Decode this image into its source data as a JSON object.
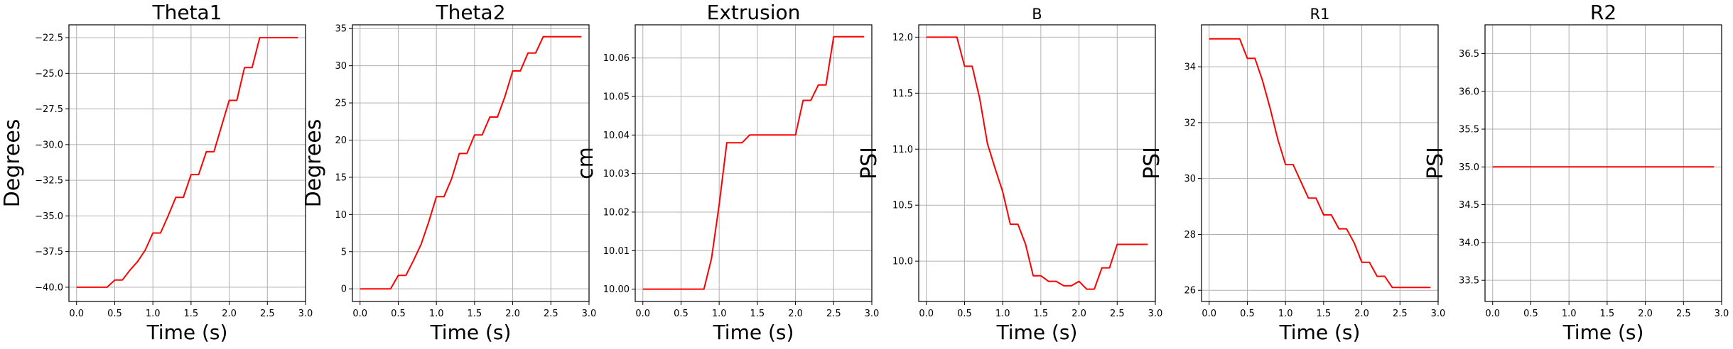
{
  "chart_data": [
    {
      "type": "line",
      "title": "Theta1",
      "xlabel": "Time (s)",
      "ylabel": "Degrees",
      "xlim": [
        -0.1,
        3.0
      ],
      "ylim": [
        -41.0,
        -21.6
      ],
      "xticks": [
        0.0,
        0.5,
        1.0,
        1.5,
        2.0,
        2.5,
        3.0
      ],
      "xtick_labels": [
        "0.0",
        "0.5",
        "1.0",
        "1.5",
        "2.0",
        "2.5",
        "3.0"
      ],
      "yticks": [
        -40.0,
        -37.5,
        -35.0,
        -32.5,
        -30.0,
        -27.5,
        -25.0,
        -22.5
      ],
      "ytick_labels": [
        "−40.0",
        "−37.5",
        "−35.0",
        "−32.5",
        "−30.0",
        "−27.5",
        "−25.0",
        "−22.5"
      ],
      "grid": true,
      "color": "#ff0000",
      "x": [
        0.0,
        0.1,
        0.2,
        0.3,
        0.4,
        0.5,
        0.6,
        0.7,
        0.8,
        0.9,
        1.0,
        1.1,
        1.2,
        1.3,
        1.4,
        1.5,
        1.6,
        1.7,
        1.8,
        1.9,
        2.0,
        2.1,
        2.2,
        2.3,
        2.4,
        2.5,
        2.6,
        2.7,
        2.8,
        2.9
      ],
      "y": [
        -40.0,
        -40.0,
        -40.0,
        -40.0,
        -40.0,
        -39.5,
        -39.5,
        -38.8,
        -38.2,
        -37.4,
        -36.2,
        -36.2,
        -35.0,
        -33.7,
        -33.7,
        -32.1,
        -32.1,
        -30.5,
        -30.5,
        -28.7,
        -26.9,
        -26.9,
        -24.6,
        -24.6,
        -22.5,
        -22.5,
        -22.5,
        -22.5,
        -22.5,
        -22.5
      ]
    },
    {
      "type": "line",
      "title": "Theta2",
      "xlabel": "Time (s)",
      "ylabel": "Degrees",
      "xlim": [
        -0.1,
        3.0
      ],
      "ylim": [
        -1.7,
        35.5
      ],
      "xticks": [
        0.0,
        0.5,
        1.0,
        1.5,
        2.0,
        2.5,
        3.0
      ],
      "xtick_labels": [
        "0.0",
        "0.5",
        "1.0",
        "1.5",
        "2.0",
        "2.5",
        "3.0"
      ],
      "yticks": [
        0,
        5,
        10,
        15,
        20,
        25,
        30,
        35
      ],
      "ytick_labels": [
        "0",
        "5",
        "10",
        "15",
        "20",
        "25",
        "30",
        "35"
      ],
      "grid": true,
      "color": "#ff0000",
      "x": [
        0.0,
        0.1,
        0.2,
        0.3,
        0.4,
        0.5,
        0.6,
        0.7,
        0.8,
        0.9,
        1.0,
        1.1,
        1.2,
        1.3,
        1.4,
        1.5,
        1.6,
        1.7,
        1.8,
        1.9,
        2.0,
        2.1,
        2.2,
        2.3,
        2.4,
        2.5,
        2.6,
        2.7,
        2.8,
        2.9
      ],
      "y": [
        0.0,
        0.0,
        0.0,
        0.0,
        0.0,
        1.8,
        1.8,
        3.8,
        6.0,
        9.0,
        12.4,
        12.4,
        14.8,
        18.2,
        18.2,
        20.7,
        20.7,
        23.1,
        23.1,
        25.9,
        29.3,
        29.3,
        31.7,
        31.7,
        33.9,
        33.9,
        33.9,
        33.9,
        33.9,
        33.9
      ]
    },
    {
      "type": "line",
      "title": "Extrusion",
      "xlabel": "Time (s)",
      "ylabel": "cm",
      "xlim": [
        -0.1,
        3.0
      ],
      "ylim": [
        9.9968,
        10.0686
      ],
      "xticks": [
        0.0,
        0.5,
        1.0,
        1.5,
        2.0,
        2.5,
        3.0
      ],
      "xtick_labels": [
        "0.0",
        "0.5",
        "1.0",
        "1.5",
        "2.0",
        "2.5",
        "3.0"
      ],
      "yticks": [
        10.0,
        10.01,
        10.02,
        10.03,
        10.04,
        10.05,
        10.06
      ],
      "ytick_labels": [
        "10.00",
        "10.01",
        "10.02",
        "10.03",
        "10.04",
        "10.05",
        "10.06"
      ],
      "grid": true,
      "color": "#ff0000",
      "x": [
        0.0,
        0.1,
        0.2,
        0.3,
        0.4,
        0.5,
        0.6,
        0.7,
        0.8,
        0.9,
        1.0,
        1.1,
        1.2,
        1.3,
        1.4,
        1.5,
        1.6,
        1.7,
        1.8,
        1.9,
        2.0,
        2.1,
        2.2,
        2.3,
        2.4,
        2.5,
        2.6,
        2.7,
        2.8,
        2.9
      ],
      "y": [
        10.0,
        10.0,
        10.0,
        10.0,
        10.0,
        10.0,
        10.0,
        10.0,
        10.0,
        10.008,
        10.022,
        10.038,
        10.038,
        10.038,
        10.04,
        10.04,
        10.04,
        10.04,
        10.04,
        10.04,
        10.04,
        10.049,
        10.049,
        10.053,
        10.053,
        10.0655,
        10.0655,
        10.0655,
        10.0655,
        10.0655
      ]
    },
    {
      "type": "line",
      "title": "B",
      "xlabel": "Time (s)",
      "ylabel": "PSI",
      "xlim": [
        -0.1,
        3.0
      ],
      "ylim": [
        9.64,
        12.11
      ],
      "xticks": [
        0.0,
        0.5,
        1.0,
        1.5,
        2.0,
        2.5,
        3.0
      ],
      "xtick_labels": [
        "0.0",
        "0.5",
        "1.0",
        "1.5",
        "2.0",
        "2.5",
        "3.0"
      ],
      "yticks": [
        10.0,
        10.5,
        11.0,
        11.5,
        12.0
      ],
      "ytick_labels": [
        "10.0",
        "10.5",
        "11.0",
        "11.5",
        "12.0"
      ],
      "grid": true,
      "color": "#ff0000",
      "x": [
        0.0,
        0.1,
        0.2,
        0.3,
        0.4,
        0.5,
        0.6,
        0.7,
        0.8,
        0.9,
        1.0,
        1.1,
        1.2,
        1.3,
        1.4,
        1.5,
        1.6,
        1.7,
        1.8,
        1.9,
        2.0,
        2.1,
        2.2,
        2.3,
        2.4,
        2.5,
        2.6,
        2.7,
        2.8,
        2.9
      ],
      "y": [
        12.0,
        12.0,
        12.0,
        12.0,
        12.0,
        11.74,
        11.74,
        11.45,
        11.05,
        10.83,
        10.62,
        10.33,
        10.33,
        10.15,
        9.87,
        9.87,
        9.82,
        9.82,
        9.78,
        9.78,
        9.82,
        9.75,
        9.75,
        9.94,
        9.94,
        10.15,
        10.15,
        10.15,
        10.15,
        10.15
      ]
    },
    {
      "type": "line",
      "title": "R1",
      "xlabel": "Time (s)",
      "ylabel": "PSI",
      "xlim": [
        -0.1,
        3.0
      ],
      "ylim": [
        25.6,
        35.5
      ],
      "xticks": [
        0.0,
        0.5,
        1.0,
        1.5,
        2.0,
        2.5,
        3.0
      ],
      "xtick_labels": [
        "0.0",
        "0.5",
        "1.0",
        "1.5",
        "2.0",
        "2.5",
        "3.0"
      ],
      "yticks": [
        26,
        28,
        30,
        32,
        34
      ],
      "ytick_labels": [
        "26",
        "28",
        "30",
        "32",
        "34"
      ],
      "grid": true,
      "color": "#ff0000",
      "x": [
        0.0,
        0.1,
        0.2,
        0.3,
        0.4,
        0.5,
        0.6,
        0.7,
        0.8,
        0.9,
        1.0,
        1.1,
        1.2,
        1.3,
        1.4,
        1.5,
        1.6,
        1.7,
        1.8,
        1.9,
        2.0,
        2.1,
        2.2,
        2.3,
        2.4,
        2.5,
        2.6,
        2.7,
        2.8,
        2.9
      ],
      "y": [
        35.0,
        35.0,
        35.0,
        35.0,
        35.0,
        34.3,
        34.3,
        33.5,
        32.5,
        31.4,
        30.5,
        30.5,
        29.9,
        29.3,
        29.3,
        28.7,
        28.7,
        28.2,
        28.2,
        27.7,
        27.0,
        27.0,
        26.5,
        26.5,
        26.1,
        26.1,
        26.1,
        26.1,
        26.1,
        26.1
      ]
    },
    {
      "type": "line",
      "title": "R2",
      "xlabel": "Time (s)",
      "ylabel": "PSI",
      "xlim": [
        -0.1,
        3.0
      ],
      "ylim": [
        33.22,
        36.88
      ],
      "xticks": [
        0.0,
        0.5,
        1.0,
        1.5,
        2.0,
        2.5,
        3.0
      ],
      "xtick_labels": [
        "0.0",
        "0.5",
        "1.0",
        "1.5",
        "2.0",
        "2.5",
        "3.0"
      ],
      "yticks": [
        33.5,
        34.0,
        34.5,
        35.0,
        35.5,
        36.0,
        36.5
      ],
      "ytick_labels": [
        "33.5",
        "34.0",
        "34.5",
        "35.0",
        "35.5",
        "36.0",
        "36.5"
      ],
      "grid": true,
      "color": "#ff0000",
      "x": [
        0.0,
        2.9
      ],
      "y": [
        35.0,
        35.0
      ]
    }
  ]
}
